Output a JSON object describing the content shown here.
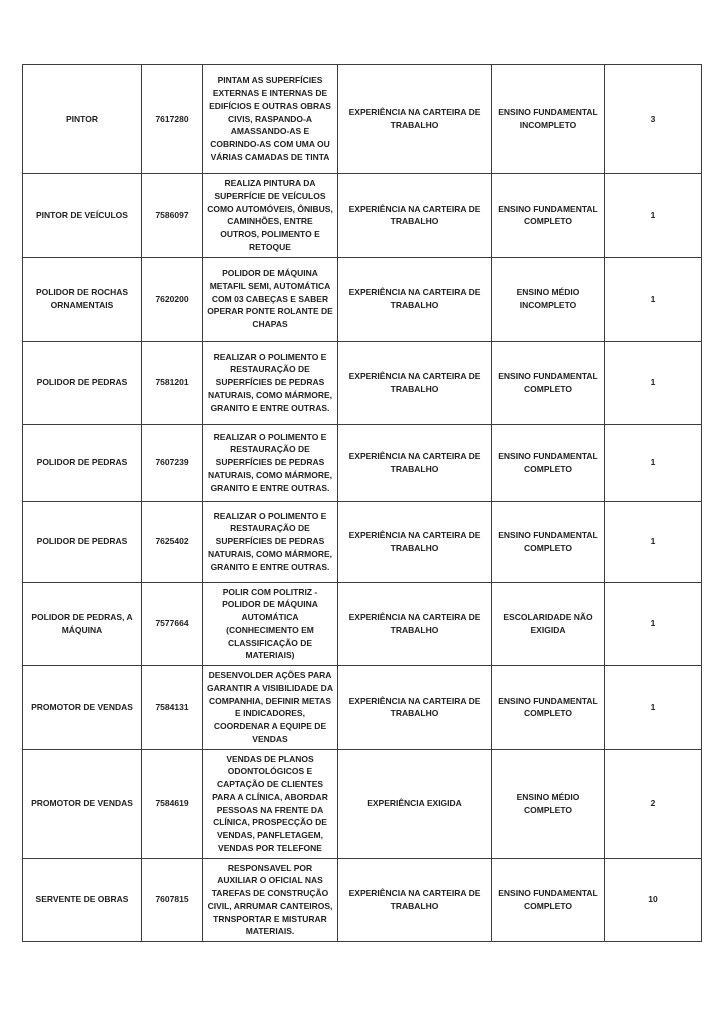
{
  "page": {
    "background_color": "#ffffff",
    "border_color": "#3d3d3d",
    "text_color": "#1f1f1f"
  },
  "table": {
    "columns": [
      "occupation",
      "code",
      "description",
      "experience",
      "education",
      "vacancies"
    ],
    "rows": [
      {
        "occupation": "PINTOR",
        "code": "7617280",
        "description": "PINTAM AS SUPERFÍCIES EXTERNAS E INTERNAS DE EDIFÍCIOS E OUTRAS OBRAS CIVIS, RASPANDO-A AMASSANDO-AS E COBRINDO-AS COM UMA OU VÁRIAS CAMADAS DE TINTA",
        "experience": "EXPERIÊNCIA NA CARTEIRA DE TRABALHO",
        "education": "ENSINO FUNDAMENTAL INCOMPLETO",
        "vacancies": "3"
      },
      {
        "occupation": "PINTOR DE VEÍCULOS",
        "code": "7586097",
        "description": "REALIZA PINTURA DA SUPERFÍCIE DE VEÍCULOS COMO AUTOMÓVEIS, ÔNIBUS, CAMINHÕES, ENTRE OUTROS, POLIMENTO E RETOQUE",
        "experience": "EXPERIÊNCIA NA CARTEIRA DE TRABALHO",
        "education": "ENSINO FUNDAMENTAL COMPLETO",
        "vacancies": "1"
      },
      {
        "occupation": "POLIDOR DE ROCHAS ORNAMENTAIS",
        "code": "7620200",
        "description": "POLIDOR DE MÁQUINA METAFIL SEMI, AUTOMÁTICA COM 03 CABEÇAS E SABER OPERAR PONTE ROLANTE DE CHAPAS",
        "experience": "EXPERIÊNCIA NA CARTEIRA DE TRABALHO",
        "education": "ENSINO MÉDIO INCOMPLETO",
        "vacancies": "1"
      },
      {
        "occupation": "POLIDOR DE PEDRAS",
        "code": "7581201",
        "description": "REALIZAR O POLIMENTO E RESTAURAÇÃO DE SUPERFÍCIES DE PEDRAS NATURAIS, COMO MÁRMORE, GRANITO E ENTRE OUTRAS.",
        "experience": "EXPERIÊNCIA NA CARTEIRA DE TRABALHO",
        "education": "ENSINO FUNDAMENTAL COMPLETO",
        "vacancies": "1"
      },
      {
        "occupation": "POLIDOR DE PEDRAS",
        "code": "7607239",
        "description": "REALIZAR O POLIMENTO E RESTAURAÇÃO DE SUPERFÍCIES DE PEDRAS NATURAIS, COMO MÁRMORE, GRANITO E ENTRE OUTRAS.",
        "experience": "EXPERIÊNCIA NA CARTEIRA DE TRABALHO",
        "education": "ENSINO FUNDAMENTAL COMPLETO",
        "vacancies": "1"
      },
      {
        "occupation": "POLIDOR DE PEDRAS",
        "code": "7625402",
        "description": "REALIZAR O POLIMENTO E RESTAURAÇÃO DE SUPERFÍCIES DE PEDRAS NATURAIS, COMO MÁRMORE, GRANITO E ENTRE OUTRAS.",
        "experience": "EXPERIÊNCIA NA CARTEIRA DE TRABALHO",
        "education": "ENSINO FUNDAMENTAL COMPLETO",
        "vacancies": "1"
      },
      {
        "occupation": "POLIDOR DE PEDRAS, A MÁQUINA",
        "code": "7577664",
        "description": "POLIR COM POLITRIZ - POLIDOR DE MÁQUINA AUTOMÁTICA (CONHECIMENTO EM CLASSIFICAÇÃO DE MATERIAIS)",
        "experience": "EXPERIÊNCIA NA CARTEIRA DE TRABALHO",
        "education": "ESCOLARIDADE NÃO EXIGIDA",
        "vacancies": "1"
      },
      {
        "occupation": "PROMOTOR DE VENDAS",
        "code": "7584131",
        "description": "DESENVOLDER AÇÕES PARA GARANTIR A VISIBILIDADE DA COMPANHIA, DEFINIR METAS E INDICADORES, COORDENAR A EQUIPE DE VENDAS",
        "experience": "EXPERIÊNCIA NA CARTEIRA DE TRABALHO",
        "education": "ENSINO FUNDAMENTAL COMPLETO",
        "vacancies": "1"
      },
      {
        "occupation": "PROMOTOR DE VENDAS",
        "code": "7584619",
        "description": "VENDAS DE PLANOS ODONTOLÓGICOS E CAPTAÇÃO DE CLIENTES PARA A CLÍNICA, ABORDAR PESSOAS NA FRENTE DA CLÍNICA, PROSPECÇÃO DE VENDAS, PANFLETAGEM, VENDAS POR TELEFONE",
        "experience": "EXPERIÊNCIA EXIGIDA",
        "education": "ENSINO MÉDIO COMPLETO",
        "vacancies": "2"
      },
      {
        "occupation": "SERVENTE DE OBRAS",
        "code": "7607815",
        "description": "RESPONSAVEL POR AUXILIAR O OFICIAL NAS TAREFAS DE CONSTRUÇÃO CIVIL, ARRUMAR CANTEIROS, TRNSPORTAR E MISTURAR MATERIAIS.",
        "experience": "EXPERIÊNCIA NA CARTEIRA DE TRABALHO",
        "education": "ENSINO FUNDAMENTAL COMPLETO",
        "vacancies": "10"
      }
    ]
  }
}
